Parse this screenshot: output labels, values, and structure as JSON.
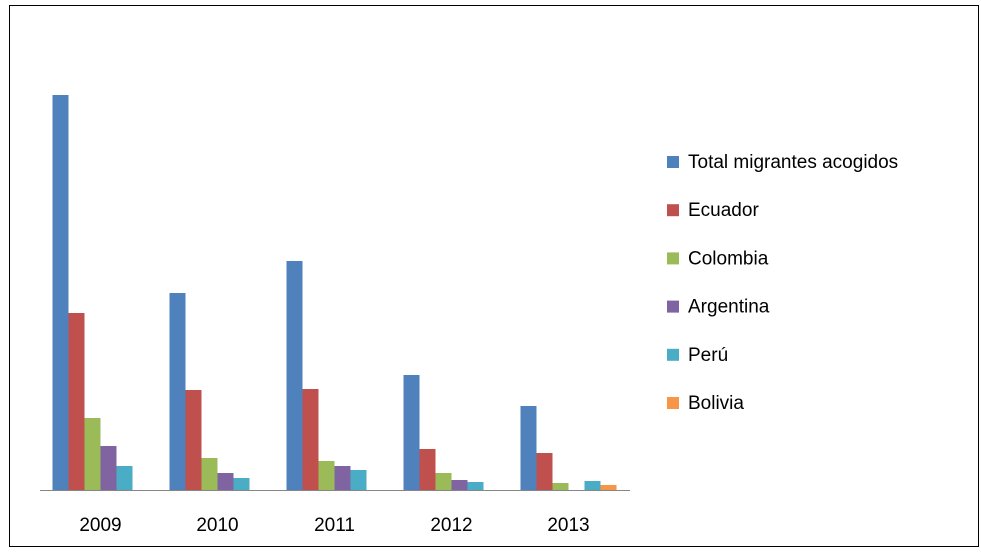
{
  "chart_data": {
    "type": "bar",
    "categories": [
      "2009",
      "2010",
      "2011",
      "2012",
      "2013"
    ],
    "series": [
      {
        "name": "Total migrantes acogidos",
        "color": "#4f81bd",
        "values": [
          395,
          197,
          229,
          115,
          84
        ]
      },
      {
        "name": "Ecuador",
        "color": "#c0504d",
        "values": [
          177,
          100,
          101,
          41,
          37
        ]
      },
      {
        "name": "Colombia",
        "color": "#9bbb59",
        "values": [
          72,
          32,
          29,
          17,
          7
        ]
      },
      {
        "name": "Argentina",
        "color": "#8064a2",
        "values": [
          44,
          17,
          24,
          10,
          0
        ]
      },
      {
        "name": "Perú",
        "color": "#4bacc6",
        "values": [
          24,
          12,
          20,
          8,
          9
        ]
      },
      {
        "name": "Bolivia",
        "color": "#f79646",
        "values": [
          0,
          0,
          0,
          0,
          5
        ]
      }
    ],
    "ylim": [
      0,
      420
    ],
    "legend": "right"
  }
}
